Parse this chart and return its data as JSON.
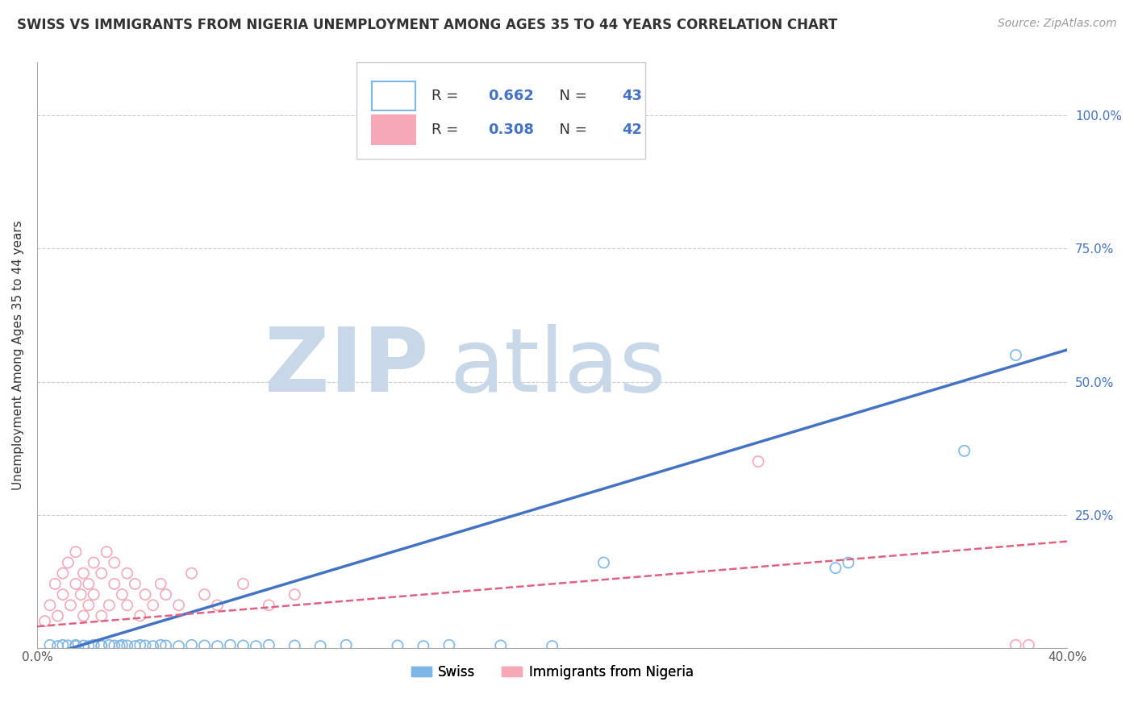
{
  "title": "SWISS VS IMMIGRANTS FROM NIGERIA UNEMPLOYMENT AMONG AGES 35 TO 44 YEARS CORRELATION CHART",
  "source": "Source: ZipAtlas.com",
  "ylabel": "Unemployment Among Ages 35 to 44 years",
  "xlim": [
    0.0,
    0.4
  ],
  "ylim": [
    0.0,
    1.1
  ],
  "xticks": [
    0.0,
    0.05,
    0.1,
    0.15,
    0.2,
    0.25,
    0.3,
    0.35,
    0.4
  ],
  "yticks": [
    0.0,
    0.25,
    0.5,
    0.75,
    1.0
  ],
  "yticklabels_right": [
    "",
    "25.0%",
    "50.0%",
    "75.0%",
    "100.0%"
  ],
  "swiss_R": 0.662,
  "swiss_N": 43,
  "nigeria_R": 0.308,
  "nigeria_N": 42,
  "swiss_color": "#7EB6E8",
  "nigeria_color": "#F4A8B8",
  "swiss_line_color": "#4472C4",
  "nigeria_line_color": "#E06080",
  "watermark_zip_color": "#C8D8E8",
  "watermark_atlas_color": "#C8D8E8",
  "legend_swiss": "Swiss",
  "legend_nigeria": "Immigrants from Nigeria",
  "legend_text_color": "#4472C4",
  "swiss_scatter": [
    [
      0.005,
      0.005
    ],
    [
      0.008,
      0.003
    ],
    [
      0.01,
      0.005
    ],
    [
      0.012,
      0.004
    ],
    [
      0.015,
      0.003
    ],
    [
      0.015,
      0.005
    ],
    [
      0.018,
      0.004
    ],
    [
      0.02,
      0.003
    ],
    [
      0.022,
      0.005
    ],
    [
      0.025,
      0.004
    ],
    [
      0.025,
      0.003
    ],
    [
      0.028,
      0.005
    ],
    [
      0.03,
      0.004
    ],
    [
      0.032,
      0.003
    ],
    [
      0.033,
      0.005
    ],
    [
      0.035,
      0.004
    ],
    [
      0.038,
      0.003
    ],
    [
      0.04,
      0.005
    ],
    [
      0.042,
      0.004
    ],
    [
      0.045,
      0.003
    ],
    [
      0.048,
      0.005
    ],
    [
      0.05,
      0.004
    ],
    [
      0.055,
      0.003
    ],
    [
      0.06,
      0.005
    ],
    [
      0.065,
      0.004
    ],
    [
      0.07,
      0.003
    ],
    [
      0.075,
      0.005
    ],
    [
      0.08,
      0.004
    ],
    [
      0.085,
      0.003
    ],
    [
      0.09,
      0.005
    ],
    [
      0.1,
      0.004
    ],
    [
      0.11,
      0.003
    ],
    [
      0.12,
      0.005
    ],
    [
      0.14,
      0.004
    ],
    [
      0.15,
      0.003
    ],
    [
      0.16,
      0.005
    ],
    [
      0.18,
      0.004
    ],
    [
      0.2,
      0.003
    ],
    [
      0.22,
      0.16
    ],
    [
      0.31,
      0.15
    ],
    [
      0.315,
      0.16
    ],
    [
      0.36,
      0.37
    ],
    [
      0.38,
      0.55
    ]
  ],
  "nigeria_scatter": [
    [
      0.003,
      0.05
    ],
    [
      0.005,
      0.08
    ],
    [
      0.007,
      0.12
    ],
    [
      0.008,
      0.06
    ],
    [
      0.01,
      0.1
    ],
    [
      0.01,
      0.14
    ],
    [
      0.012,
      0.16
    ],
    [
      0.013,
      0.08
    ],
    [
      0.015,
      0.12
    ],
    [
      0.015,
      0.18
    ],
    [
      0.017,
      0.1
    ],
    [
      0.018,
      0.14
    ],
    [
      0.018,
      0.06
    ],
    [
      0.02,
      0.12
    ],
    [
      0.02,
      0.08
    ],
    [
      0.022,
      0.16
    ],
    [
      0.022,
      0.1
    ],
    [
      0.025,
      0.14
    ],
    [
      0.025,
      0.06
    ],
    [
      0.027,
      0.18
    ],
    [
      0.028,
      0.08
    ],
    [
      0.03,
      0.12
    ],
    [
      0.03,
      0.16
    ],
    [
      0.033,
      0.1
    ],
    [
      0.035,
      0.14
    ],
    [
      0.035,
      0.08
    ],
    [
      0.038,
      0.12
    ],
    [
      0.04,
      0.06
    ],
    [
      0.042,
      0.1
    ],
    [
      0.045,
      0.08
    ],
    [
      0.048,
      0.12
    ],
    [
      0.05,
      0.1
    ],
    [
      0.055,
      0.08
    ],
    [
      0.06,
      0.14
    ],
    [
      0.065,
      0.1
    ],
    [
      0.07,
      0.08
    ],
    [
      0.08,
      0.12
    ],
    [
      0.09,
      0.08
    ],
    [
      0.1,
      0.1
    ],
    [
      0.28,
      0.35
    ],
    [
      0.38,
      0.005
    ],
    [
      0.385,
      0.005
    ]
  ],
  "swiss_line": [
    [
      0.0,
      -0.02
    ],
    [
      0.4,
      0.56
    ]
  ],
  "nigeria_line": [
    [
      0.0,
      0.04
    ],
    [
      0.4,
      0.2
    ]
  ]
}
